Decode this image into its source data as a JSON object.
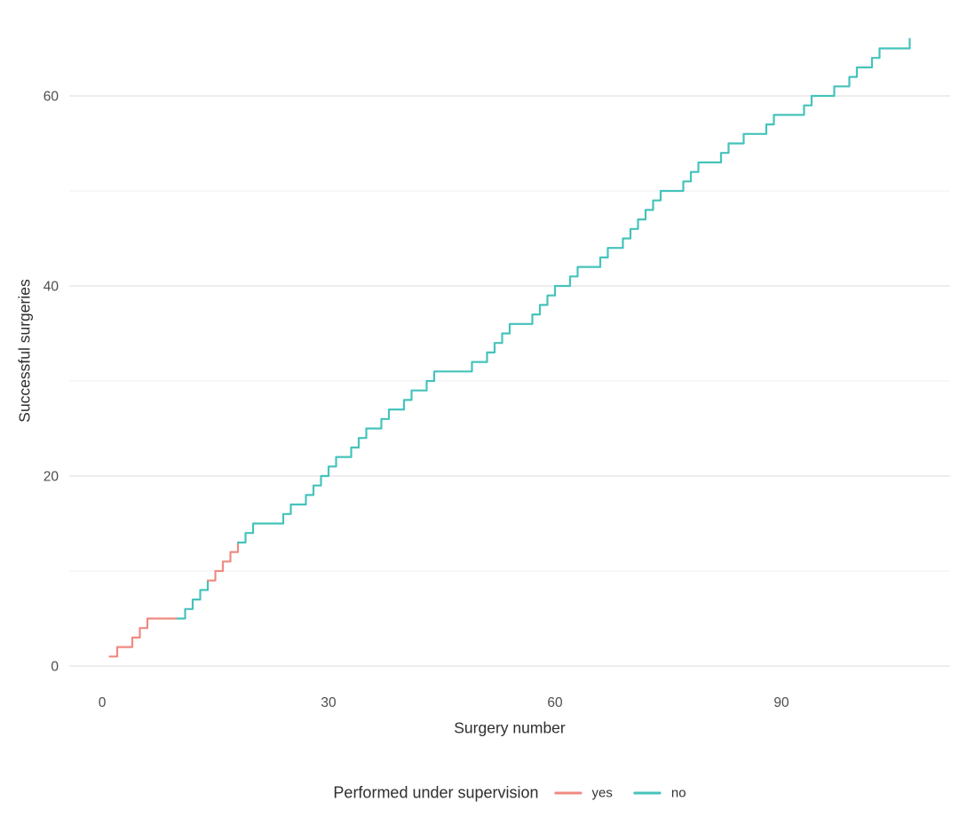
{
  "chart_data": {
    "type": "step",
    "title": "",
    "xlabel": "Surgery number",
    "ylabel": "Successful surgeries",
    "x_ticks": [
      0,
      30,
      60,
      90
    ],
    "y_ticks": [
      0,
      20,
      40,
      60
    ],
    "y_minor_ticks": [
      10,
      30,
      50
    ],
    "xlim": [
      0,
      112
    ],
    "ylim": [
      0,
      67
    ],
    "grid": {
      "horizontal_only": true,
      "major_color": "#e7e7e7",
      "minor_color": "#f2f2f2"
    },
    "axis_text_color": "#4d4d4d",
    "series_semantics": "cumulative successful surgeries vs surgery number, colored by supervision status",
    "segments": [
      {
        "supervised": "yes",
        "start_surgery": 1,
        "outcomes": [
          1,
          1,
          0,
          1,
          1,
          1,
          0,
          0,
          0,
          0
        ]
      },
      {
        "supervised": "no",
        "start_surgery": 11,
        "outcomes": [
          1,
          1,
          1,
          1
        ]
      },
      {
        "supervised": "yes",
        "start_surgery": 15,
        "outcomes": [
          1,
          1,
          1,
          1
        ]
      },
      {
        "supervised": "no",
        "start_surgery": 19,
        "outcomes": [
          1,
          1,
          0,
          0,
          0,
          1,
          1,
          0,
          1,
          1,
          1,
          1,
          1,
          0,
          1,
          1,
          1,
          0,
          1,
          1,
          0,
          1,
          1,
          0,
          1,
          1,
          0,
          0,
          0,
          0,
          1,
          0,
          1,
          1,
          1,
          1,
          0,
          0,
          1,
          1,
          1,
          1,
          0,
          1,
          1,
          0,
          0,
          1,
          1,
          0,
          1,
          1,
          1,
          1,
          1,
          1,
          0,
          0,
          1,
          1,
          1,
          0,
          0,
          1,
          1,
          0,
          1,
          0,
          0,
          1,
          1,
          0,
          0,
          0,
          1,
          1,
          0,
          0,
          1,
          0,
          1,
          1,
          0,
          1,
          1,
          0,
          0,
          0,
          1
        ]
      }
    ]
  },
  "legend": {
    "title": "Performed under supervision",
    "position": "bottom",
    "items": [
      {
        "label": "yes",
        "color": "#ef8a82"
      },
      {
        "label": "no",
        "color": "#45c3bb"
      }
    ]
  }
}
